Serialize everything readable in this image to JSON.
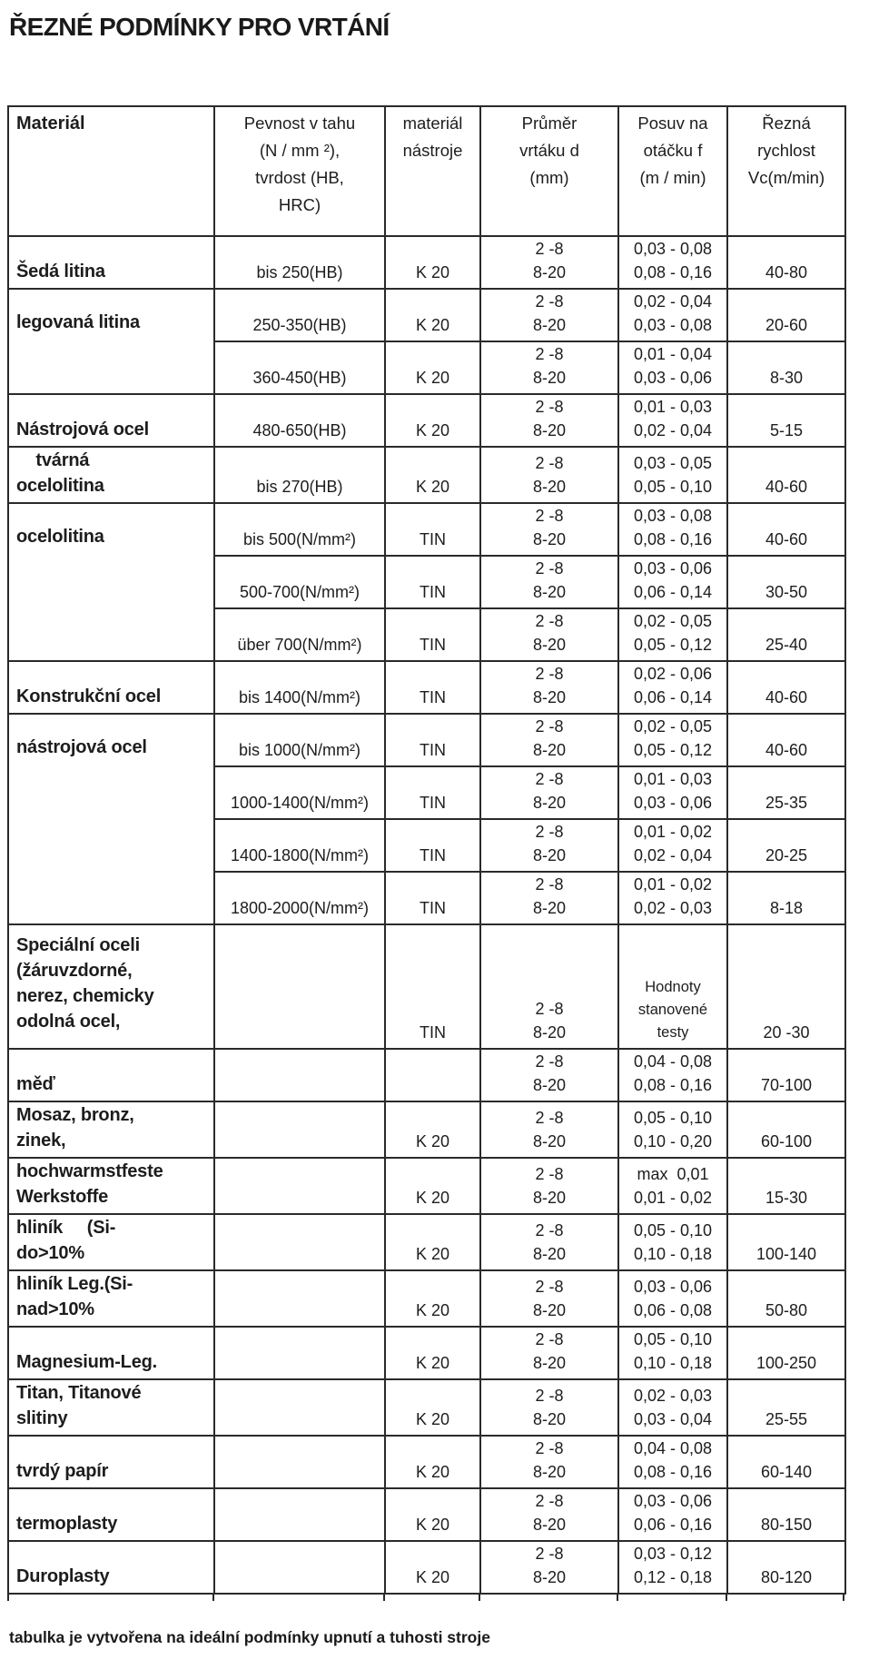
{
  "page": {
    "title": "ŘEZNÉ PODMÍNKY PRO VRTÁNÍ",
    "footnote": "tabulka je vytvořena na ideální podmínky upnutí a tuhosti stroje"
  },
  "table": {
    "headers": {
      "material": "Materiál",
      "strength": "Pevnost v tahu\n(N / mm ²),\ntvrdost (HB,\nHRC)",
      "tool_material": "materiál\nnástroje",
      "drill_diameter": "Průměr\nvrtáku d\n(mm)",
      "feed_per_rev": "Posuv na\notáčku f\n(m / min)",
      "cutting_speed": "Řezná\nrychlost\nVc(m/min)"
    },
    "groups": [
      {
        "name": "Šedá litina",
        "rows": [
          {
            "strength": "bis 250(HB)",
            "tool": "K 20",
            "diameter": "2 -8\n8-20",
            "feed": "0,03 - 0,08\n0,08 - 0,16",
            "speed": "40-80"
          }
        ]
      },
      {
        "name": "legovaná litina",
        "rows": [
          {
            "strength": "250-350(HB)",
            "tool": "K 20",
            "diameter": "2 -8\n8-20",
            "feed": "0,02 - 0,04\n0,03 - 0,08",
            "speed": "20-60"
          },
          {
            "strength": "360-450(HB)",
            "tool": "K 20",
            "diameter": "2 -8\n8-20",
            "feed": "0,01 - 0,04\n0,03 - 0,06",
            "speed": "8-30"
          }
        ]
      },
      {
        "name": "Nástrojová ocel",
        "rows": [
          {
            "strength": "480-650(HB)",
            "tool": "K 20",
            "diameter": "2 -8\n8-20",
            "feed": "0,01 - 0,03\n0,02 - 0,04",
            "speed": "5-15"
          }
        ]
      },
      {
        "name": "    tvárná\nocelolitina",
        "rows": [
          {
            "strength": "bis 270(HB)",
            "tool": "K 20",
            "diameter": "2 -8\n8-20",
            "feed": "0,03 - 0,05\n0,05 - 0,10",
            "speed": "40-60"
          }
        ]
      },
      {
        "name": "ocelolitina",
        "rows": [
          {
            "strength": "bis 500(N/mm²)",
            "tool": "TIN",
            "diameter": "2 -8\n8-20",
            "feed": "0,03 - 0,08\n0,08 - 0,16",
            "speed": "40-60"
          },
          {
            "strength": "500-700(N/mm²)",
            "tool": "TIN",
            "diameter": "2 -8\n8-20",
            "feed": "0,03 - 0,06\n0,06 - 0,14",
            "speed": "30-50"
          },
          {
            "strength": "über 700(N/mm²)",
            "tool": "TIN",
            "diameter": "2 -8\n8-20",
            "feed": "0,02 - 0,05\n0,05 - 0,12",
            "speed": "25-40"
          }
        ]
      },
      {
        "name": "Konstrukční ocel",
        "rows": [
          {
            "strength": "bis 1400(N/mm²)",
            "tool": "TIN",
            "diameter": "2 -8\n8-20",
            "feed": "0,02 - 0,06\n0,06 - 0,14",
            "speed": "40-60"
          }
        ]
      },
      {
        "name": "nástrojová ocel",
        "rows": [
          {
            "strength": "bis 1000(N/mm²)",
            "tool": "TIN",
            "diameter": "2 -8\n8-20",
            "feed": "0,02 - 0,05\n0,05 - 0,12",
            "speed": "40-60"
          },
          {
            "strength": "1000-1400(N/mm²)",
            "tool": "TIN",
            "diameter": "2 -8\n8-20",
            "feed": "0,01 - 0,03\n0,03 - 0,06",
            "speed": "25-35"
          },
          {
            "strength": "1400-1800(N/mm²)",
            "tool": "TIN",
            "diameter": "2 -8\n8-20",
            "feed": "0,01 - 0,02\n0,02 - 0,04",
            "speed": "20-25"
          },
          {
            "strength": "1800-2000(N/mm²)",
            "tool": "TIN",
            "diameter": "2 -8\n8-20",
            "feed": "0,01 - 0,02\n0,02 - 0,03",
            "speed": "8-18"
          }
        ]
      },
      {
        "name": "Speciální oceli\n(žáruvzdorné,\nnerez, chemicky\nodolná ocel,",
        "rows": [
          {
            "strength": "",
            "tool": "TIN",
            "diameter": "2 -8\n8-20",
            "feed": "Hodnoty\nstanovené\ntesty",
            "speed": "20 -30"
          }
        ]
      },
      {
        "name": "měď",
        "rows": [
          {
            "strength": "",
            "tool": "",
            "diameter": "2 -8\n8-20",
            "feed": "0,04 - 0,08\n0,08 - 0,16",
            "speed": "70-100"
          }
        ]
      },
      {
        "name": "Mosaz, bronz,\nzinek,",
        "rows": [
          {
            "strength": "",
            "tool": "K 20",
            "diameter": "2 -8\n8-20",
            "feed": "0,05 - 0,10\n0,10 - 0,20",
            "speed": "60-100"
          }
        ]
      },
      {
        "name": "hochwarmstfeste\nWerkstoffe",
        "rows": [
          {
            "strength": "",
            "tool": "K 20",
            "diameter": "2 -8\n8-20",
            "feed": "max  0,01\n0,01 - 0,02",
            "speed": "15-30"
          }
        ]
      },
      {
        "name": "hliník     (Si-\ndo>10%",
        "rows": [
          {
            "strength": "",
            "tool": "K 20",
            "diameter": "2 -8\n8-20",
            "feed": "0,05 - 0,10\n0,10 - 0,18",
            "speed": "100-140"
          }
        ]
      },
      {
        "name": "hliník Leg.(Si-\nnad>10%",
        "rows": [
          {
            "strength": "",
            "tool": "K 20",
            "diameter": "2 -8\n8-20",
            "feed": "0,03 - 0,06\n0,06 - 0,08",
            "speed": "50-80"
          }
        ]
      },
      {
        "name": "Magnesium-Leg.",
        "rows": [
          {
            "strength": "",
            "tool": "K 20",
            "diameter": "2 -8\n8-20",
            "feed": "0,05 - 0,10\n0,10 - 0,18",
            "speed": "100-250"
          }
        ]
      },
      {
        "name": "Titan, Titanové\nslitiny",
        "rows": [
          {
            "strength": "",
            "tool": "K 20",
            "diameter": "2 -8\n8-20",
            "feed": "0,02 - 0,03\n0,03 - 0,04",
            "speed": "25-55"
          }
        ]
      },
      {
        "name": "tvrdý papír",
        "rows": [
          {
            "strength": "",
            "tool": "K 20",
            "diameter": "2 -8\n8-20",
            "feed": "0,04 - 0,08\n0,08 - 0,16",
            "speed": "60-140"
          }
        ]
      },
      {
        "name": "termoplasty",
        "rows": [
          {
            "strength": "",
            "tool": "K 20",
            "diameter": "2 -8\n8-20",
            "feed": "0,03 - 0,06\n0,06 - 0,16",
            "speed": "80-150"
          }
        ]
      },
      {
        "name": "Duroplasty",
        "rows": [
          {
            "strength": "",
            "tool": "K 20",
            "diameter": "2 -8\n8-20",
            "feed": "0,03 - 0,12\n0,12 - 0,18",
            "speed": "80-120"
          }
        ]
      }
    ]
  }
}
